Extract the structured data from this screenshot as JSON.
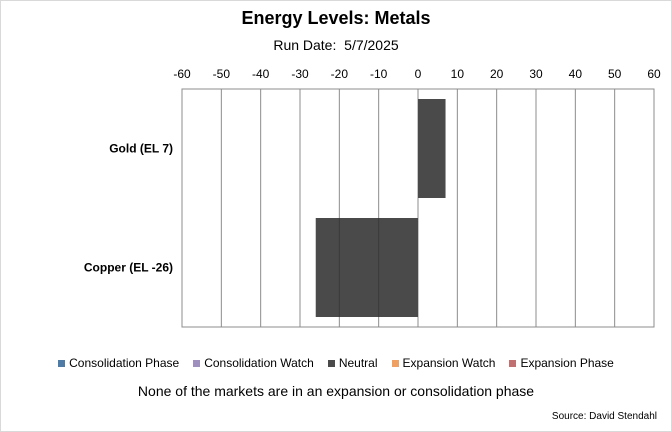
{
  "colors": {
    "consolidation_phase": "#4f7ba7",
    "consolidation_watch": "#9f8fbf",
    "neutral": "#4a4a4a",
    "expansion_watch": "#f0a060",
    "expansion_phase": "#c07070"
  },
  "chart_data": {
    "type": "bar",
    "orientation": "horizontal",
    "title": "Energy Levels: Metals",
    "run_date_label": "Run Date:",
    "run_date": "5/7/2025",
    "categories": [
      "Gold (EL 7)",
      "Copper (EL -26)"
    ],
    "values": [
      7,
      -26
    ],
    "bar_status": [
      "neutral",
      "neutral"
    ],
    "xlim": [
      -60,
      60
    ],
    "x_ticks": [
      -60,
      -50,
      -40,
      -30,
      -20,
      -10,
      0,
      10,
      20,
      30,
      40,
      50,
      60
    ],
    "x_axis_position": "top",
    "grid": true,
    "legend_position": "bottom",
    "legend": [
      {
        "key": "consolidation_phase",
        "label": "Consolidation Phase"
      },
      {
        "key": "consolidation_watch",
        "label": "Consolidation Watch"
      },
      {
        "key": "neutral",
        "label": "Neutral"
      },
      {
        "key": "expansion_watch",
        "label": "Expansion Watch"
      },
      {
        "key": "expansion_phase",
        "label": "Expansion Phase"
      }
    ],
    "note": "None of the markets are in an expansion or consolidation phase",
    "source": "Source: David Stendahl"
  }
}
